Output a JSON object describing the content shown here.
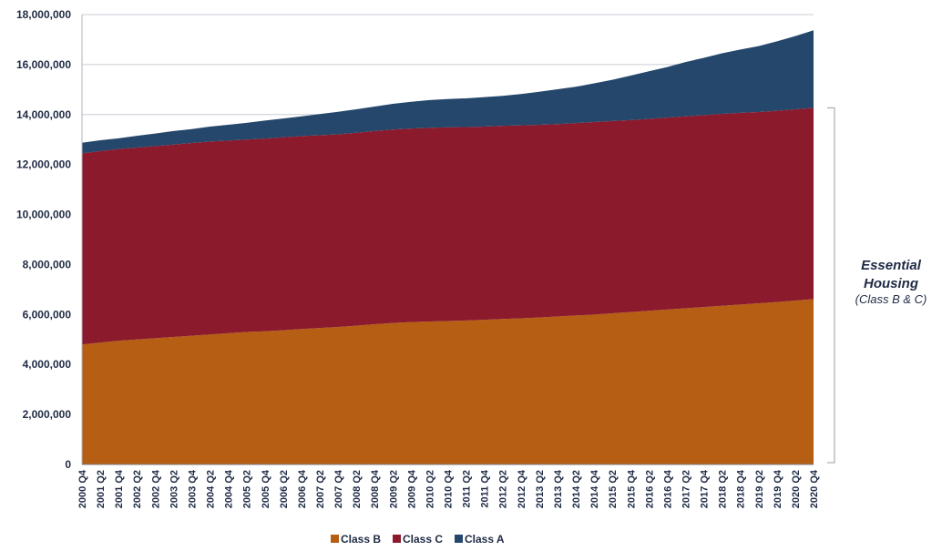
{
  "chart_data": {
    "type": "area",
    "stacked": true,
    "x": [
      "2000 Q4",
      "2001 Q2",
      "2001 Q4",
      "2002 Q2",
      "2002 Q4",
      "2003 Q2",
      "2003 Q4",
      "2004 Q2",
      "2004 Q4",
      "2005 Q2",
      "2005 Q4",
      "2006 Q2",
      "2006 Q4",
      "2007 Q2",
      "2007 Q4",
      "2008 Q2",
      "2008 Q4",
      "2009 Q2",
      "2009 Q4",
      "2010 Q2",
      "2010 Q4",
      "2011 Q2",
      "2011 Q4",
      "2012 Q2",
      "2012 Q4",
      "2013 Q2",
      "2013 Q4",
      "2014 Q2",
      "2014 Q4",
      "2015 Q2",
      "2015 Q4",
      "2016 Q2",
      "2016 Q4",
      "2017 Q2",
      "2017 Q4",
      "2018 Q2",
      "2018 Q4",
      "2019 Q2",
      "2019 Q4",
      "2020 Q2",
      "2020 Q4"
    ],
    "series": [
      {
        "name": "Class B",
        "color": "#b55e14",
        "values": [
          4800000,
          4880000,
          4950000,
          5000000,
          5050000,
          5100000,
          5150000,
          5200000,
          5250000,
          5300000,
          5330000,
          5370000,
          5420000,
          5460000,
          5500000,
          5550000,
          5610000,
          5660000,
          5700000,
          5720000,
          5740000,
          5760000,
          5790000,
          5820000,
          5850000,
          5880000,
          5920000,
          5960000,
          6000000,
          6050000,
          6100000,
          6150000,
          6200000,
          6250000,
          6300000,
          6350000,
          6400000,
          6450000,
          6500000,
          6560000,
          6620000
        ]
      },
      {
        "name": "Class C",
        "color": "#8b1a2d",
        "values": [
          7650000,
          7660000,
          7670000,
          7680000,
          7690000,
          7700000,
          7710000,
          7720000,
          7710000,
          7700000,
          7710000,
          7720000,
          7720000,
          7710000,
          7710000,
          7720000,
          7730000,
          7740000,
          7740000,
          7750000,
          7750000,
          7740000,
          7730000,
          7730000,
          7720000,
          7710000,
          7700000,
          7700000,
          7700000,
          7690000,
          7680000,
          7680000,
          7680000,
          7680000,
          7680000,
          7680000,
          7670000,
          7650000,
          7650000,
          7650000,
          7650000
        ]
      },
      {
        "name": "Class A",
        "color": "#24476b",
        "values": [
          420000,
          430000,
          430000,
          470000,
          500000,
          540000,
          560000,
          600000,
          630000,
          670000,
          720000,
          750000,
          790000,
          850000,
          900000,
          940000,
          980000,
          1030000,
          1070000,
          1110000,
          1130000,
          1150000,
          1180000,
          1200000,
          1250000,
          1320000,
          1390000,
          1450000,
          1550000,
          1650000,
          1780000,
          1900000,
          2020000,
          2170000,
          2290000,
          2420000,
          2530000,
          2640000,
          2780000,
          2930000,
          3100000
        ]
      }
    ],
    "ylim": [
      0,
      18000000
    ],
    "yticks": [
      "0",
      "2,000,000",
      "4,000,000",
      "6,000,000",
      "8,000,000",
      "10,000,000",
      "12,000,000",
      "14,000,000",
      "16,000,000",
      "18,000,000"
    ],
    "grid": "horizontal",
    "legend_position": "bottom",
    "annotation": {
      "title": "Essential Housing",
      "subtitle": "(Class B & C)"
    },
    "annotation_bracket_range": [
      6620000,
      14270000
    ]
  }
}
